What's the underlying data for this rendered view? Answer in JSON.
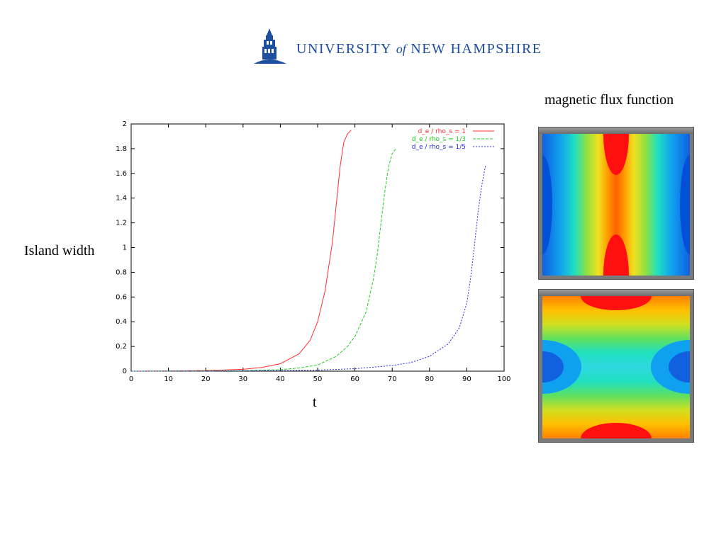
{
  "header": {
    "logo_text_1": "UNIVERSITY",
    "logo_text_of": "of",
    "logo_text_2": "NEW HAMPSHIRE",
    "brand_color": "#1f4fa0"
  },
  "flux_title": "magnetic flux function",
  "y_axis_label": "Island width",
  "x_axis_label": "t",
  "flux_windows": [
    {
      "title": "",
      "icon": "contour-plot-x-point-vertical"
    },
    {
      "title": "",
      "icon": "contour-plot-x-point-horizontal"
    }
  ],
  "chart_data": {
    "type": "line",
    "xlim": [
      0,
      100
    ],
    "ylim": [
      0,
      2
    ],
    "xticks": [
      "0",
      "10",
      "20",
      "30",
      "40",
      "50",
      "60",
      "70",
      "80",
      "90",
      "100"
    ],
    "yticks": [
      "0",
      "0.2",
      "0.4",
      "0.6",
      "0.8",
      "1",
      "1.2",
      "1.4",
      "1.6",
      "1.8",
      "2"
    ],
    "grid": false,
    "legend_position": "top-right",
    "series": [
      {
        "name": "d_e / rho_s = 1",
        "color": "#ff3030",
        "dash": "",
        "x": [
          0,
          10,
          20,
          30,
          35,
          40,
          45,
          48,
          50,
          52,
          54,
          55,
          56,
          57,
          58,
          59
        ],
        "y": [
          0,
          0.002,
          0.005,
          0.015,
          0.03,
          0.06,
          0.14,
          0.25,
          0.4,
          0.65,
          1.05,
          1.35,
          1.65,
          1.85,
          1.92,
          1.95
        ]
      },
      {
        "name": "d_e / rho_s = 1/3",
        "color": "#20d020",
        "dash": "4,2",
        "x": [
          0,
          10,
          20,
          30,
          40,
          45,
          50,
          55,
          58,
          60,
          63,
          65,
          66,
          67,
          68,
          69,
          70,
          71
        ],
        "y": [
          0,
          0.001,
          0.002,
          0.004,
          0.012,
          0.025,
          0.05,
          0.12,
          0.2,
          0.28,
          0.48,
          0.75,
          0.95,
          1.2,
          1.45,
          1.65,
          1.76,
          1.8
        ]
      },
      {
        "name": "d_e / rho_s = 1/5",
        "color": "#2a2af0",
        "dash": "2,2",
        "x": [
          0,
          20,
          40,
          50,
          60,
          70,
          75,
          80,
          85,
          88,
          90,
          91,
          92,
          93,
          94,
          95
        ],
        "y": [
          0,
          0.001,
          0.004,
          0.008,
          0.02,
          0.045,
          0.07,
          0.12,
          0.22,
          0.35,
          0.55,
          0.75,
          1.0,
          1.28,
          1.5,
          1.66
        ]
      }
    ]
  }
}
